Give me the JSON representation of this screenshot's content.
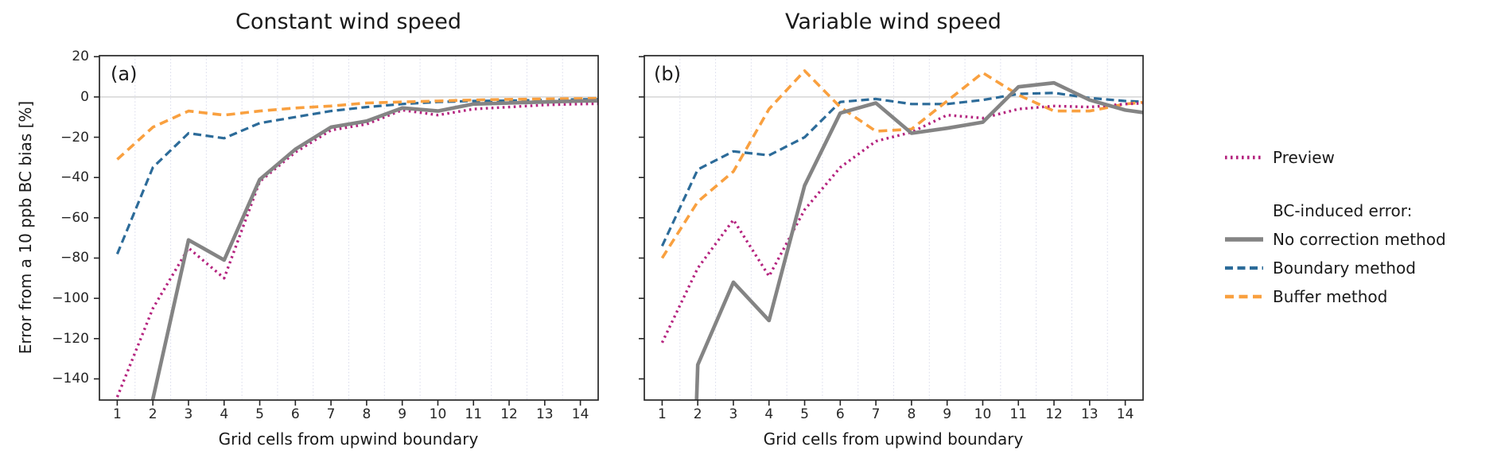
{
  "figure": {
    "ylabel": "Error from a 10 ppb BC bias [%]",
    "xlabel": "Grid cells from upwind boundary",
    "panels": [
      {
        "tag": "(a)",
        "title": "Constant wind speed"
      },
      {
        "tag": "(b)",
        "title": "Variable wind speed"
      }
    ]
  },
  "legend": {
    "preview_label": "Preview",
    "header": "BC-induced error:",
    "items": [
      {
        "label": "No correction method"
      },
      {
        "label": "Boundary method"
      },
      {
        "label": "Buffer method"
      }
    ]
  },
  "colors": {
    "preview": "#b5247f",
    "no_correction": "#848484",
    "boundary": "#2c6b99",
    "buffer": "#f9a03f",
    "spine": "#262626",
    "gridline": "#d8daea",
    "zero_line": "#dcdcdc"
  },
  "chart_data": [
    {
      "type": "line",
      "panel_label": "(a)",
      "title": "Constant wind speed",
      "xlabel": "Grid cells from upwind boundary",
      "ylabel": "Error from a 10 ppb BC bias [%]",
      "x": [
        1,
        2,
        3,
        4,
        5,
        6,
        7,
        8,
        9,
        10,
        11,
        12,
        13,
        14
      ],
      "xticks": [
        1,
        2,
        3,
        4,
        5,
        6,
        7,
        8,
        9,
        10,
        11,
        12,
        13,
        14
      ],
      "yticks": [
        20,
        0,
        -20,
        -40,
        -60,
        -80,
        -100,
        -120,
        -140
      ],
      "xlim": [
        0.5,
        14.5
      ],
      "ylim": [
        -150.5,
        20.5
      ],
      "grid": "vertical dotted at half-integer cell edges; light horizontal line at 0",
      "legend_position": "outside right",
      "note": "No-correction value at x=1 is below the axis range (clipped off-scale)",
      "series": [
        {
          "name": "Boundary method",
          "style": "dashed",
          "values": [
            -78,
            -35,
            -18,
            -20.5,
            -13,
            -10,
            -7,
            -5,
            -3.5,
            -2.5,
            -2,
            -1.8,
            -1.5,
            -1.2
          ]
        },
        {
          "name": "Buffer method",
          "style": "dashed",
          "values": [
            -31,
            -15,
            -7,
            -9,
            -7,
            -5.5,
            -4.5,
            -3,
            -2.5,
            -2,
            -1.5,
            -1.2,
            -1,
            -0.8
          ]
        },
        {
          "name": "Preview",
          "style": "dotted",
          "values": [
            -149,
            -105,
            -75,
            -90,
            -42,
            -27.5,
            -16.5,
            -13.5,
            -6.5,
            -9,
            -6,
            -5,
            -4,
            -3.5
          ]
        },
        {
          "name": "No correction method",
          "style": "solid",
          "clipped_below_axis": true,
          "values": [
            null,
            -150,
            -71,
            -81,
            -41,
            -26,
            -15,
            -12,
            -5.5,
            -7,
            -3.5,
            -3,
            -2.5,
            -2
          ]
        }
      ]
    },
    {
      "type": "line",
      "panel_label": "(b)",
      "title": "Variable wind speed",
      "xlabel": "Grid cells from upwind boundary",
      "ylabel": "Error from a 10 ppb BC bias [%]",
      "x": [
        1,
        2,
        3,
        4,
        5,
        6,
        7,
        8,
        9,
        10,
        11,
        12,
        13,
        14
      ],
      "xticks": [
        1,
        2,
        3,
        4,
        5,
        6,
        7,
        8,
        9,
        10,
        11,
        12,
        13,
        14
      ],
      "yticks": [
        20,
        0,
        -20,
        -40,
        -60,
        -80,
        -100,
        -120,
        -140
      ],
      "xlim": [
        0.5,
        14.5
      ],
      "ylim": [
        -150.5,
        20.5
      ],
      "grid": "vertical dotted at half-integer cell edges; light horizontal line at 0",
      "legend_position": "outside right",
      "note": "No-correction value at x=1 is below the axis range (clipped off-scale)",
      "series": [
        {
          "name": "Boundary method",
          "style": "dashed",
          "values": [
            -74,
            -36,
            -27,
            -29,
            -20,
            -2.5,
            -1,
            -3.5,
            -3.5,
            -1.5,
            1.5,
            2,
            -0.5,
            -2
          ]
        },
        {
          "name": "Buffer method",
          "style": "dashed",
          "values": [
            -80,
            -52,
            -37,
            -6,
            13,
            -5,
            -17,
            -16,
            -2,
            12,
            1,
            -7,
            -7,
            -3.5
          ]
        },
        {
          "name": "Preview",
          "style": "dotted",
          "values": [
            -122,
            -85,
            -61,
            -89,
            -56,
            -35,
            -22,
            -17.5,
            -9,
            -10.5,
            -6,
            -4.5,
            -5,
            -3.5
          ]
        },
        {
          "name": "No correction method",
          "style": "solid",
          "clipped_below_axis": true,
          "values": [
            null,
            -133,
            -92,
            -111,
            -44,
            -8,
            -3,
            -18,
            -15.5,
            -12.5,
            5,
            7,
            -1.5,
            -6.5
          ]
        }
      ]
    }
  ]
}
